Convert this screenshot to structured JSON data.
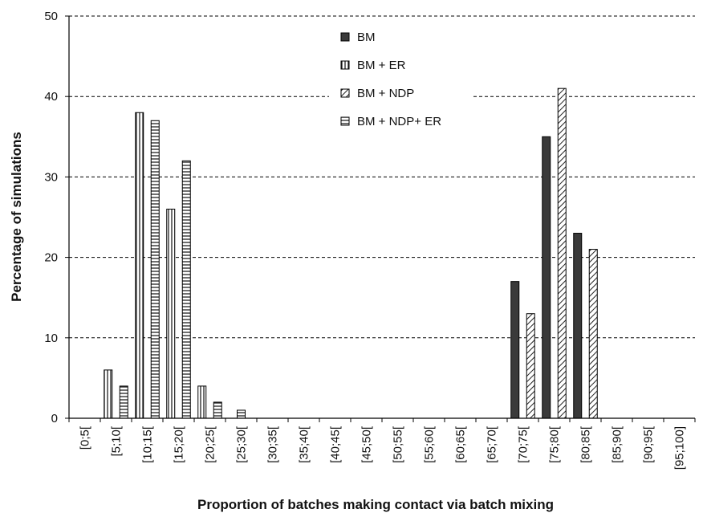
{
  "chart_data": {
    "type": "bar",
    "xlabel": "Proportion of batches making contact via batch mixing",
    "ylabel": "Percentage of simulations",
    "ylim": [
      0,
      50
    ],
    "yticks": [
      "0",
      "10",
      "20",
      "30",
      "40",
      "50"
    ],
    "grid": true,
    "legend_position": "top-center",
    "categories": [
      "[0;5[",
      "[5;10[",
      "[10;15[",
      "[15;20[",
      "[20;25[",
      "[25;30[",
      "[30;35[",
      "[35;40[",
      "[40;45[",
      "[45;50[",
      "[50;55[",
      "[55;60[",
      "[60;65[",
      "[65;70[",
      "[70;75[",
      "[75;80[",
      "[80;85[",
      "[85;90[",
      "[90;95[",
      "[95;100]"
    ],
    "series": [
      {
        "name": "BM",
        "pattern": "solid",
        "values": [
          0,
          0,
          0,
          0,
          0,
          0,
          0,
          0,
          0,
          0,
          0,
          0,
          0,
          0,
          17,
          35,
          23,
          0,
          0,
          0
        ]
      },
      {
        "name": "BM + ER",
        "pattern": "vertical",
        "values": [
          0,
          6,
          38,
          26,
          4,
          0,
          0,
          0,
          0,
          0,
          0,
          0,
          0,
          0,
          0,
          0,
          0,
          0,
          0,
          0
        ]
      },
      {
        "name": "BM + NDP",
        "pattern": "diagonal",
        "values": [
          0,
          0,
          0,
          0,
          0,
          0,
          0,
          0,
          0,
          0,
          0,
          0,
          0,
          0,
          13,
          41,
          21,
          0,
          0,
          0
        ]
      },
      {
        "name": "BM + NDP+ ER",
        "pattern": "horizontal",
        "values": [
          0,
          4,
          37,
          32,
          2,
          1,
          0,
          0,
          0,
          0,
          0,
          0,
          0,
          0,
          0,
          0,
          0,
          0,
          0,
          0
        ]
      }
    ]
  }
}
